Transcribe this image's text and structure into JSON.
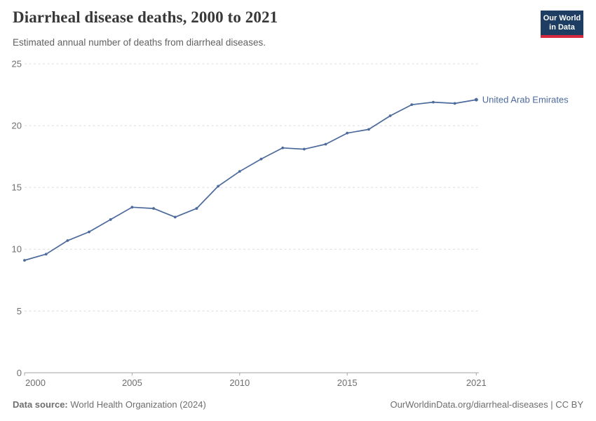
{
  "header": {
    "title": "Diarrheal disease deaths, 2000 to 2021",
    "subtitle": "Estimated annual number of deaths from diarrheal diseases."
  },
  "logo": {
    "line1": "Our World",
    "line2": "in Data"
  },
  "chart_data": {
    "type": "line",
    "title": "Diarrheal disease deaths, 2000 to 2021",
    "x": [
      2000,
      2001,
      2002,
      2003,
      2004,
      2005,
      2006,
      2007,
      2008,
      2009,
      2010,
      2011,
      2012,
      2013,
      2014,
      2015,
      2016,
      2017,
      2018,
      2019,
      2020,
      2021
    ],
    "series": [
      {
        "name": "United Arab Emirates",
        "color": "#4C6A9C",
        "values": [
          9.1,
          9.6,
          10.7,
          11.4,
          12.4,
          13.4,
          13.3,
          12.6,
          13.3,
          15.1,
          16.3,
          17.3,
          18.2,
          18.1,
          18.5,
          19.4,
          19.7,
          20.8,
          21.7,
          21.9,
          21.8,
          22.1
        ]
      }
    ],
    "xlabel": "",
    "ylabel": "",
    "ylim": [
      0,
      25
    ],
    "yticks": [
      0,
      5,
      10,
      15,
      20,
      25
    ],
    "xticks": [
      2000,
      2005,
      2010,
      2015,
      2021
    ],
    "grid": "horizontal-dashed",
    "legend_position": "end-of-line-label"
  },
  "footer": {
    "source_label": "Data source:",
    "source_value": "World Health Organization (2024)",
    "link": "OurWorldinData.org/diarrheal-diseases | CC BY"
  },
  "colors": {
    "line": "#4C6A9C",
    "logo_bg": "#1d3d63",
    "logo_stripe": "#d6293e",
    "gridline": "#dcdcdc",
    "axis": "#a5a5a5",
    "tick_label": "#6e6e6e",
    "title": "#383838",
    "subtitle": "#616161"
  }
}
